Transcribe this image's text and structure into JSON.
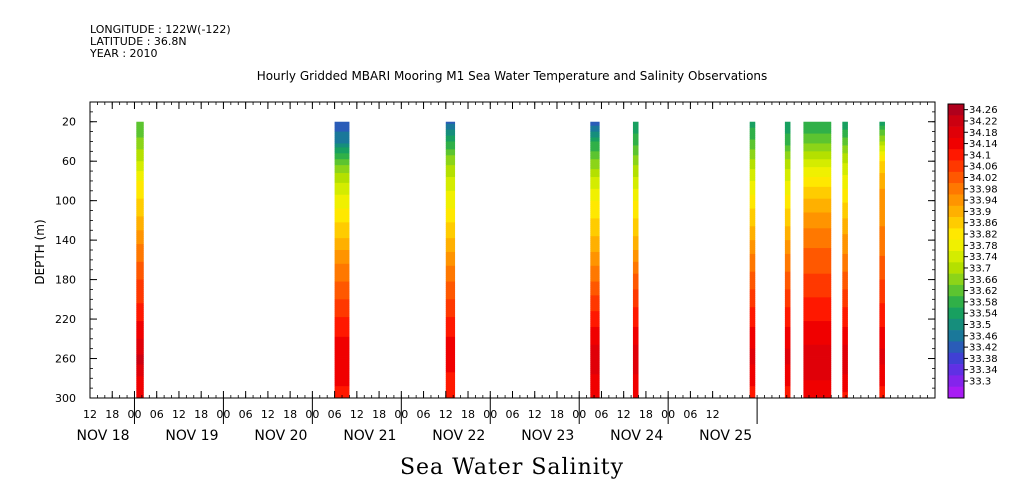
{
  "header": {
    "longitude": "LONGITUDE : 122W(-122)",
    "latitude": "LATITUDE : 36.8N",
    "year": "YEAR : 2010"
  },
  "chart_data": {
    "type": "heatmap",
    "title": "Hourly Gridded MBARI Mooring M1 Sea Water Temperature and Salinity Observations",
    "caption": "Sea Water Salinity",
    "ylabel": "DEPTH (m)",
    "xlabel": "",
    "ylim": [
      300,
      0
    ],
    "y_ticks": [
      20,
      60,
      100,
      140,
      180,
      220,
      260,
      300
    ],
    "x_hour_ticks": [
      "12",
      "18",
      "00",
      "06",
      "12",
      "18",
      "00",
      "06",
      "12",
      "18",
      "00",
      "06",
      "12",
      "18",
      "00",
      "06",
      "12",
      "18",
      "00",
      "06",
      "12",
      "18",
      "00",
      "06",
      "12",
      "18",
      "00",
      "06",
      "12"
    ],
    "date_labels": [
      "NOV 18",
      "NOV 19",
      "NOV 20",
      "NOV 21",
      "NOV 22",
      "NOV 23",
      "NOV 24",
      "NOV 25"
    ],
    "colorbar_labels": [
      "34.26",
      "34.22",
      "34.18",
      "34.14",
      "34.1",
      "34.06",
      "34.02",
      "33.98",
      "33.94",
      "33.9",
      "33.86",
      "33.82",
      "33.78",
      "33.74",
      "33.7",
      "33.66",
      "33.62",
      "33.58",
      "33.54",
      "33.5",
      "33.46",
      "33.42",
      "33.38",
      "33.34",
      "33.3"
    ],
    "colorbar_colors": [
      "#b0001c",
      "#cc0010",
      "#e00008",
      "#f00000",
      "#ff1800",
      "#ff3800",
      "#ff5800",
      "#ff7800",
      "#ff9400",
      "#ffb000",
      "#ffcc00",
      "#ffe800",
      "#f0f000",
      "#d4ec00",
      "#b4e000",
      "#8cd418",
      "#5cc430",
      "#30b048",
      "#18a060",
      "#168e7c",
      "#1a789a",
      "#2a5cb8",
      "#4040d4",
      "#6030e4",
      "#8424ec",
      "#a81cf4"
    ],
    "depth_levels": [
      20,
      40,
      60,
      80,
      100,
      120,
      140,
      160,
      180,
      200,
      220,
      240,
      260,
      280,
      300
    ],
    "columns": [
      {
        "start_hours": 24.5,
        "end_hours": 26.5,
        "salinity": [
          33.64,
          33.68,
          33.75,
          33.82,
          33.86,
          33.9,
          33.96,
          34.0,
          34.04,
          34.07,
          34.11,
          34.15,
          34.2,
          34.14,
          34.12
        ]
      },
      {
        "start_hours": 78,
        "end_hours": 82,
        "salinity": [
          33.46,
          33.52,
          33.66,
          33.74,
          33.8,
          33.85,
          33.9,
          33.96,
          34.0,
          34.04,
          34.08,
          34.12,
          34.14,
          34.12,
          34.1
        ]
      },
      {
        "start_hours": 108,
        "end_hours": 110.5,
        "salinity": [
          33.48,
          33.6,
          33.7,
          33.76,
          33.8,
          33.85,
          33.9,
          33.95,
          34.0,
          34.04,
          34.08,
          34.12,
          34.14,
          34.1,
          34.08
        ]
      },
      {
        "start_hours": 147,
        "end_hours": 149.5,
        "salinity": [
          33.46,
          33.6,
          33.68,
          33.76,
          33.82,
          33.86,
          33.9,
          33.95,
          34.0,
          34.05,
          34.1,
          34.14,
          34.18,
          34.14,
          34.12
        ]
      },
      {
        "start_hours": 158.5,
        "end_hours": 160,
        "salinity": [
          33.56,
          33.62,
          33.7,
          33.76,
          33.82,
          33.86,
          33.9,
          33.96,
          34.02,
          34.06,
          34.1,
          34.14,
          34.18,
          34.14,
          34.12
        ]
      },
      {
        "start_hours": 190,
        "end_hours": 191.5,
        "salinity": [
          33.58,
          33.64,
          33.72,
          33.78,
          33.84,
          33.88,
          33.93,
          33.98,
          34.02,
          34.06,
          34.1,
          34.14,
          34.16,
          34.12,
          34.1
        ]
      },
      {
        "start_hours": 199.5,
        "end_hours": 201,
        "salinity": [
          33.56,
          33.62,
          33.72,
          33.78,
          33.84,
          33.88,
          33.93,
          33.98,
          34.02,
          34.06,
          34.1,
          34.14,
          34.16,
          34.12,
          34.1
        ]
      },
      {
        "start_hours": 204.5,
        "end_hours": 212,
        "salinity": [
          33.6,
          33.66,
          33.76,
          33.84,
          33.9,
          33.95,
          33.99,
          34.02,
          34.05,
          34.08,
          34.11,
          34.14,
          34.18,
          34.15,
          34.12
        ]
      },
      {
        "start_hours": 215,
        "end_hours": 216.5,
        "salinity": [
          33.56,
          33.66,
          33.74,
          33.8,
          33.85,
          33.9,
          33.94,
          33.98,
          34.02,
          34.06,
          34.1,
          34.14,
          34.18,
          34.14,
          34.1
        ]
      },
      {
        "start_hours": 225,
        "end_hours": 226.5,
        "salinity": [
          33.58,
          33.72,
          33.86,
          33.92,
          33.94,
          33.96,
          33.98,
          34.01,
          34.04,
          34.07,
          34.1,
          34.14,
          34.16,
          34.12,
          34.1
        ]
      }
    ]
  }
}
